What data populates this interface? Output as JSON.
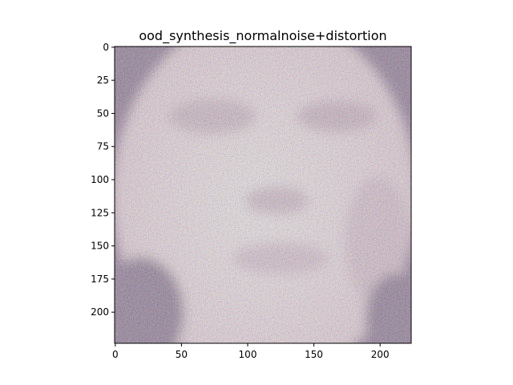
{
  "chart_data": {
    "type": "heatmap",
    "title": "ood_synthesis_normalnoise+distortion",
    "xlabel": "",
    "ylabel": "",
    "image_size": [
      224,
      224
    ],
    "xlim": [
      -0.5,
      223.5
    ],
    "ylim": [
      223.5,
      -0.5
    ],
    "x_ticks": [
      0,
      50,
      100,
      150,
      200
    ],
    "y_ticks": [
      0,
      25,
      50,
      75,
      100,
      125,
      150,
      175,
      200
    ],
    "grid": false,
    "legend": "none",
    "content": "noisy face image",
    "colors": {
      "skin": "#f7e6f0",
      "noise_dark": "#7a5c84"
    }
  }
}
